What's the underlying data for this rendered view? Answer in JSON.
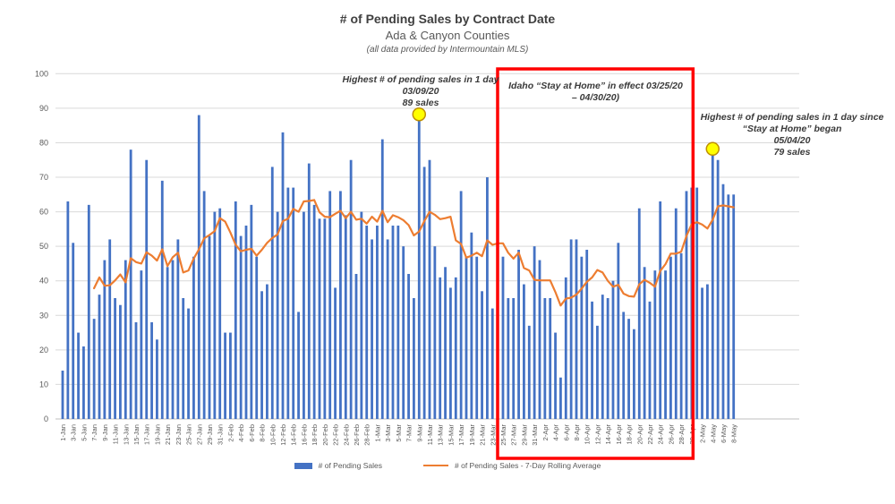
{
  "header": {
    "title": "# of Pending Sales by Contract Date",
    "subtitle": "Ada & Canyon Counties",
    "source_note": "(all data provided by Intermountain MLS)"
  },
  "chart_data": {
    "type": "bar",
    "title": "# of Pending Sales by Contract Date",
    "xlabel": "",
    "ylabel": "",
    "ylim": [
      0,
      100
    ],
    "y_ticks": [
      0,
      10,
      20,
      30,
      40,
      50,
      60,
      70,
      80,
      90,
      100
    ],
    "grid": "horizontal",
    "x_label_every": 2,
    "x": [
      "1-Jan",
      "2-Jan",
      "3-Jan",
      "4-Jan",
      "5-Jan",
      "6-Jan",
      "7-Jan",
      "8-Jan",
      "9-Jan",
      "10-Jan",
      "11-Jan",
      "12-Jan",
      "13-Jan",
      "14-Jan",
      "15-Jan",
      "16-Jan",
      "17-Jan",
      "18-Jan",
      "19-Jan",
      "20-Jan",
      "21-Jan",
      "22-Jan",
      "23-Jan",
      "24-Jan",
      "25-Jan",
      "26-Jan",
      "27-Jan",
      "28-Jan",
      "29-Jan",
      "30-Jan",
      "31-Jan",
      "1-Feb",
      "2-Feb",
      "3-Feb",
      "4-Feb",
      "5-Feb",
      "6-Feb",
      "7-Feb",
      "8-Feb",
      "9-Feb",
      "10-Feb",
      "11-Feb",
      "12-Feb",
      "13-Feb",
      "14-Feb",
      "15-Feb",
      "16-Feb",
      "17-Feb",
      "18-Feb",
      "19-Feb",
      "20-Feb",
      "21-Feb",
      "22-Feb",
      "23-Feb",
      "24-Feb",
      "25-Feb",
      "26-Feb",
      "27-Feb",
      "28-Feb",
      "29-Feb",
      "1-Mar",
      "2-Mar",
      "3-Mar",
      "4-Mar",
      "5-Mar",
      "6-Mar",
      "7-Mar",
      "8-Mar",
      "9-Mar",
      "10-Mar",
      "11-Mar",
      "12-Mar",
      "13-Mar",
      "14-Mar",
      "15-Mar",
      "16-Mar",
      "17-Mar",
      "18-Mar",
      "19-Mar",
      "20-Mar",
      "21-Mar",
      "22-Mar",
      "23-Mar",
      "24-Mar",
      "25-Mar",
      "26-Mar",
      "27-Mar",
      "28-Mar",
      "29-Mar",
      "30-Mar",
      "31-Mar",
      "1-Apr",
      "2-Apr",
      "3-Apr",
      "4-Apr",
      "5-Apr",
      "6-Apr",
      "7-Apr",
      "8-Apr",
      "9-Apr",
      "10-Apr",
      "11-Apr",
      "12-Apr",
      "13-Apr",
      "14-Apr",
      "15-Apr",
      "16-Apr",
      "17-Apr",
      "18-Apr",
      "19-Apr",
      "20-Apr",
      "21-Apr",
      "22-Apr",
      "23-Apr",
      "24-Apr",
      "25-Apr",
      "26-Apr",
      "27-Apr",
      "28-Apr",
      "29-Apr",
      "30-Apr",
      "1-May",
      "2-May",
      "3-May",
      "4-May",
      "5-May",
      "6-May",
      "7-May",
      "8-May"
    ],
    "series": [
      {
        "name": "# of Pending Sales",
        "type": "bar",
        "color": "#4472C4",
        "values": [
          14,
          63,
          51,
          25,
          21,
          62,
          29,
          36,
          46,
          52,
          35,
          33,
          46,
          78,
          28,
          43,
          75,
          28,
          23,
          69,
          44,
          46,
          52,
          35,
          32,
          47,
          88,
          66,
          53,
          60,
          61,
          25,
          25,
          63,
          53,
          56,
          62,
          47,
          37,
          39,
          73,
          60,
          83,
          67,
          67,
          31,
          60,
          74,
          62,
          58,
          58,
          66,
          38,
          66,
          59,
          75,
          42,
          60,
          56,
          52,
          56,
          81,
          52,
          56,
          56,
          50,
          42,
          35,
          89,
          73,
          75,
          50,
          41,
          44,
          38,
          41,
          66,
          47,
          54,
          47,
          37,
          70,
          32,
          69,
          47,
          35,
          35,
          49,
          39,
          27,
          50,
          46,
          35,
          35,
          25,
          12,
          41,
          52,
          52,
          47,
          49,
          34,
          27,
          36,
          35,
          40,
          51,
          31,
          29,
          26,
          61,
          44,
          34,
          43,
          63,
          43,
          47,
          61,
          48,
          66,
          67,
          67,
          38,
          39,
          79,
          75,
          68,
          65,
          65
        ]
      },
      {
        "name": "# of Pending Sales - 7-Day Rolling Average",
        "type": "line",
        "color": "#ED7D31",
        "derived_from": "7-day rolling average of # of Pending Sales",
        "window": 7
      }
    ],
    "markers": [
      {
        "date": "9-Mar",
        "value": 89,
        "fill": "#FFFF00",
        "stroke": "#BF8F00"
      },
      {
        "date": "4-May",
        "value": 79,
        "fill": "#FFFF00",
        "stroke": "#BF8F00"
      }
    ],
    "highlight_box": {
      "from_date": "25-Mar",
      "to_date": "30-Apr",
      "color": "#FF0000"
    },
    "colors": {
      "gridline": "#D9D9D9",
      "axis_line": "#BFBFBF",
      "tick_label": "#595959"
    }
  },
  "annotations": {
    "peak1": {
      "line1": "Highest # of pending sales in 1 day",
      "line2": "03/09/20",
      "line3": "89 sales"
    },
    "stay_home": {
      "line1": "Idaho “Stay at Home” in effect 03/25/20",
      "line2": "– 04/30/20)"
    },
    "peak2": {
      "line1": "Highest # of pending sales in 1 day since",
      "line2": "“Stay at Home” began",
      "line3": "05/04/20",
      "line4": "79 sales"
    }
  },
  "legend": {
    "items": [
      {
        "label": "# of Pending Sales",
        "swatch": "bar",
        "color": "#4472C4"
      },
      {
        "label": "# of Pending Sales - 7-Day Rolling Average",
        "swatch": "line",
        "color": "#ED7D31"
      }
    ]
  }
}
